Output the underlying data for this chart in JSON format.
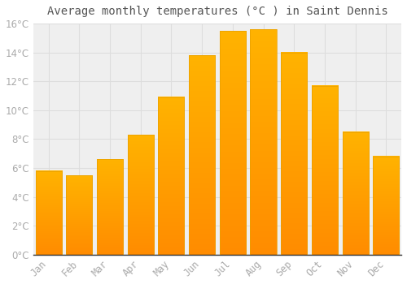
{
  "title": "Average monthly temperatures (°C ) in Saint Dennis",
  "months": [
    "Jan",
    "Feb",
    "Mar",
    "Apr",
    "May",
    "Jun",
    "Jul",
    "Aug",
    "Sep",
    "Oct",
    "Nov",
    "Dec"
  ],
  "values": [
    5.8,
    5.5,
    6.6,
    8.3,
    10.9,
    13.8,
    15.5,
    15.6,
    14.0,
    11.7,
    8.5,
    6.8
  ],
  "bar_color_top": "#FFB300",
  "bar_color_bottom": "#FF8C00",
  "background_color": "#FFFFFF",
  "plot_bg_color": "#EFEFEF",
  "grid_color": "#DDDDDD",
  "text_color": "#AAAAAA",
  "title_color": "#555555",
  "ylim": [
    0,
    16
  ],
  "ytick_step": 2,
  "title_fontsize": 10,
  "tick_fontsize": 8.5
}
